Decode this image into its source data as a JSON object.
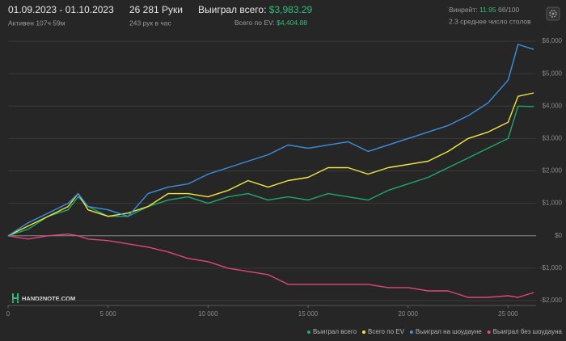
{
  "header": {
    "date_range": "01.09.2023 - 01.10.2023",
    "active": "Активен 107ч 59м",
    "hands": "26 281 Руки",
    "hands_per_hour": "243 рук в час",
    "won_label": "Выиграл всего:",
    "won_value": "$3,983.29",
    "ev_label": "Всего по EV:",
    "ev_value": "$4,404.88",
    "winrate_label": "Винрейт:",
    "winrate_value": "11.95",
    "winrate_unit": "бб/100",
    "tables": "2.3 среднее число столов",
    "logo": "HAND2NOTE.COM"
  },
  "chart_data": {
    "type": "line",
    "x": [
      0,
      1000,
      2000,
      3000,
      3500,
      4000,
      5000,
      6000,
      7000,
      8000,
      9000,
      10000,
      11000,
      12000,
      13000,
      14000,
      15000,
      16000,
      17000,
      18000,
      19000,
      20000,
      21000,
      22000,
      23000,
      24000,
      25000,
      25500,
      26281
    ],
    "series": [
      {
        "name": "Выиграл всего",
        "color": "#1fa870",
        "values": [
          0,
          200,
          600,
          800,
          1200,
          900,
          600,
          600,
          900,
          1100,
          1200,
          1000,
          1200,
          1300,
          1100,
          1200,
          1100,
          1300,
          1200,
          1100,
          1400,
          1600,
          1800,
          2100,
          2400,
          2700,
          3000,
          4000,
          3983.29
        ]
      },
      {
        "name": "Всего по EV",
        "color": "#f2e640",
        "values": [
          0,
          300,
          600,
          900,
          1300,
          800,
          600,
          700,
          900,
          1300,
          1300,
          1200,
          1400,
          1700,
          1500,
          1700,
          1800,
          2100,
          2100,
          1900,
          2100,
          2200,
          2300,
          2600,
          3000,
          3200,
          3500,
          4300,
          4404.88
        ]
      },
      {
        "name": "Выиграл на шоудауне",
        "color": "#3d8fe0",
        "values": [
          0,
          400,
          700,
          1000,
          1300,
          900,
          800,
          600,
          1300,
          1500,
          1600,
          1900,
          2100,
          2300,
          2500,
          2800,
          2700,
          2800,
          2900,
          2600,
          2800,
          3000,
          3200,
          3400,
          3700,
          4100,
          4800,
          5900,
          5750
        ]
      },
      {
        "name": "Выиграл без шоудауна",
        "color": "#e0457b",
        "values": [
          0,
          -100,
          0,
          50,
          0,
          -100,
          -150,
          -250,
          -350,
          -500,
          -700,
          -800,
          -1000,
          -1100,
          -1200,
          -1500,
          -1500,
          -1500,
          -1500,
          -1500,
          -1600,
          -1600,
          -1700,
          -1700,
          -1900,
          -1900,
          -1850,
          -1900,
          -1750
        ]
      }
    ],
    "xlim": [
      0,
      26400
    ],
    "xticks": [
      0,
      {
        "value": 5000,
        "label": "5 000"
      },
      {
        "value": 10000,
        "label": "10 000"
      },
      {
        "value": 15000,
        "label": "15 000"
      },
      {
        "value": 20000,
        "label": "20 000"
      },
      {
        "value": 25000,
        "label": "25 000"
      }
    ],
    "ylim": [
      -2100,
      6300
    ],
    "yticks": [
      {
        "value": -2000,
        "label": "-$2,000"
      },
      {
        "value": -1000,
        "label": "-$1,000"
      },
      {
        "value": 0,
        "label": "$0"
      },
      {
        "value": 1000,
        "label": "$1,000"
      },
      {
        "value": 2000,
        "label": "$2,000"
      },
      {
        "value": 3000,
        "label": "$3,000"
      },
      {
        "value": 4000,
        "label": "$4,000"
      },
      {
        "value": 5000,
        "label": "$5,000"
      },
      {
        "value": 6000,
        "label": "$6,000"
      }
    ],
    "grid": true
  }
}
